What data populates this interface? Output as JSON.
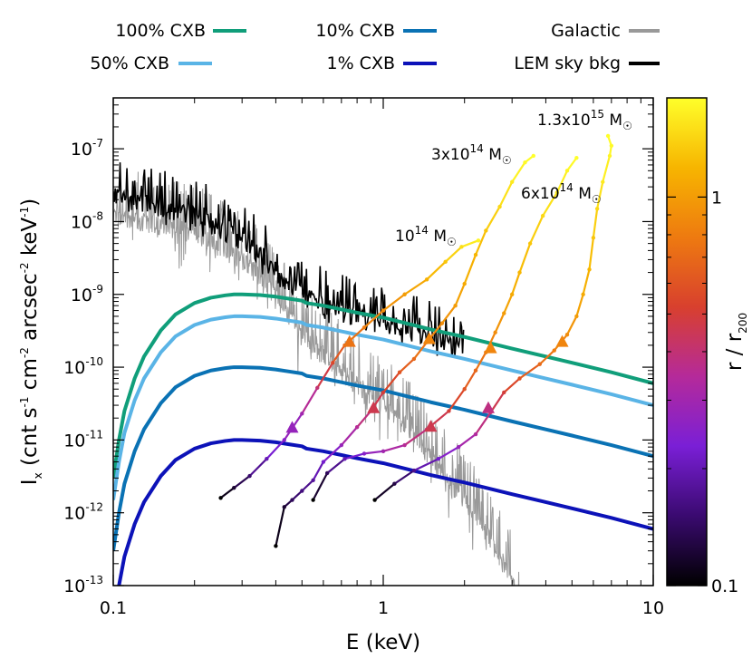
{
  "chart_data": {
    "type": "line",
    "xlabel": "E (keV)",
    "ylabel": {
      "parts": [
        {
          "t": "I"
        },
        {
          "t": "x",
          "sub": true
        },
        {
          "t": " (cnt s"
        },
        {
          "t": "-1",
          "sup": true
        },
        {
          "t": " cm"
        },
        {
          "t": "-2",
          "sup": true
        },
        {
          "t": " arcsec"
        },
        {
          "t": "-2",
          "sup": true
        },
        {
          "t": " keV"
        },
        {
          "t": "-1",
          "sup": true
        },
        {
          "t": ")"
        }
      ]
    },
    "colorbar_label": {
      "parts": [
        {
          "t": "r / r"
        },
        {
          "t": "200",
          "sub": true
        }
      ]
    },
    "x_scale": "log",
    "y_scale": "log",
    "xlim": [
      0.1,
      10
    ],
    "ylim": [
      1e-13,
      5e-07
    ],
    "x_ticks": [
      {
        "value": 0.1,
        "label": "0.1"
      },
      {
        "value": 1,
        "label": "1"
      },
      {
        "value": 10,
        "label": "10"
      }
    ],
    "y_ticks": [
      {
        "value": 1e-13,
        "base": "10",
        "exp": "-13"
      },
      {
        "value": 1e-12,
        "base": "10",
        "exp": "-12"
      },
      {
        "value": 1e-11,
        "base": "10",
        "exp": "-11"
      },
      {
        "value": 1e-10,
        "base": "10",
        "exp": "-10"
      },
      {
        "value": 1e-09,
        "base": "10",
        "exp": "-9"
      },
      {
        "value": 1e-08,
        "base": "10",
        "exp": "-8"
      },
      {
        "value": 1e-07,
        "base": "10",
        "exp": "-7"
      }
    ],
    "colorbar": {
      "scale": "log",
      "range": [
        0.1,
        1.8
      ],
      "ticks": [
        {
          "value": 1,
          "label": "1"
        },
        {
          "value": 0.1,
          "label": "0.1"
        }
      ],
      "colors": [
        "#000000",
        "#3a0a70",
        "#7a1fd6",
        "#b52a9a",
        "#d8402e",
        "#ee7a10",
        "#f7b500",
        "#ffff2a"
      ]
    },
    "legend": [
      {
        "name": "100% CXB",
        "color": "#109e7a"
      },
      {
        "name": "50% CXB",
        "color": "#5ab4e6"
      },
      {
        "name": "10% CXB",
        "color": "#0a72b4"
      },
      {
        "name": "1% CXB",
        "color": "#0c12b8"
      },
      {
        "name": "Galactic",
        "color": "#999999"
      },
      {
        "name": "LEM sky bkg",
        "color": "#000000"
      }
    ],
    "cxb_series": [
      {
        "name": "100% CXB",
        "color": "#109e7a",
        "scale": 1
      },
      {
        "name": "50% CXB",
        "color": "#5ab4e6",
        "scale": 0.5
      },
      {
        "name": "10% CXB",
        "color": "#0a72b4",
        "scale": 0.1
      },
      {
        "name": "1% CXB",
        "color": "#0c12b8",
        "scale": 0.01
      }
    ],
    "cxb_shape": [
      [
        0.1,
        3e-12
      ],
      [
        0.105,
        1e-11
      ],
      [
        0.11,
        2.5e-11
      ],
      [
        0.12,
        7e-11
      ],
      [
        0.13,
        1.4e-10
      ],
      [
        0.15,
        3.2e-10
      ],
      [
        0.17,
        5.3e-10
      ],
      [
        0.2,
        7.6e-10
      ],
      [
        0.23,
        9e-10
      ],
      [
        0.26,
        9.7e-10
      ],
      [
        0.28,
        1e-09
      ],
      [
        0.3,
        1e-09
      ],
      [
        0.35,
        9.8e-10
      ],
      [
        0.4,
        9.3e-10
      ],
      [
        0.45,
        8.7e-10
      ],
      [
        0.5,
        8.2e-10
      ],
      [
        0.52,
        7.6e-10
      ],
      [
        0.6,
        7e-10
      ],
      [
        0.8,
        5.6e-10
      ],
      [
        1.0,
        4.8e-10
      ],
      [
        1.5,
        3.3e-10
      ],
      [
        2,
        2.6e-10
      ],
      [
        3,
        1.8e-10
      ],
      [
        4,
        1.4e-10
      ],
      [
        5,
        1.15e-10
      ],
      [
        7,
        8.5e-11
      ],
      [
        10,
        6e-11
      ]
    ],
    "galactic": {
      "name": "Galactic",
      "color": "#999999",
      "envelope": [
        [
          0.1,
          2e-08
        ],
        [
          0.12,
          1.8e-08
        ],
        [
          0.15,
          1.5e-08
        ],
        [
          0.2,
          1.2e-08
        ],
        [
          0.25,
          7.5e-09
        ],
        [
          0.3,
          5e-09
        ],
        [
          0.35,
          3e-09
        ],
        [
          0.4,
          1.6e-09
        ],
        [
          0.45,
          8e-10
        ],
        [
          0.5,
          4.5e-10
        ],
        [
          0.6,
          2.5e-10
        ],
        [
          0.7,
          1.5e-10
        ],
        [
          0.8,
          1e-10
        ],
        [
          0.9,
          7e-11
        ],
        [
          1.0,
          5e-11
        ],
        [
          1.3,
          2e-11
        ],
        [
          1.6,
          7e-12
        ],
        [
          2.0,
          2.5e-12
        ],
        [
          2.5,
          7e-13
        ],
        [
          3.0,
          2e-13
        ],
        [
          3.2,
          1e-13
        ]
      ]
    },
    "lem_sky": {
      "name": "LEM sky bkg",
      "color": "#000000",
      "envelope": [
        [
          0.1,
          2.2e-08
        ],
        [
          0.12,
          1.9e-08
        ],
        [
          0.15,
          1.6e-08
        ],
        [
          0.2,
          1.3e-08
        ],
        [
          0.25,
          8e-09
        ],
        [
          0.3,
          5.5e-09
        ],
        [
          0.35,
          3.5e-09
        ],
        [
          0.4,
          2e-09
        ],
        [
          0.45,
          1.3e-09
        ],
        [
          0.5,
          1e-09
        ],
        [
          0.6,
          7.5e-10
        ],
        [
          0.7,
          6e-10
        ],
        [
          0.8,
          5e-10
        ],
        [
          0.9,
          4.3e-10
        ],
        [
          1.0,
          3.8e-10
        ],
        [
          1.2,
          3.3e-10
        ],
        [
          1.5,
          2.6e-10
        ],
        [
          1.8,
          2e-10
        ],
        [
          2.0,
          1.7e-10
        ]
      ]
    },
    "cluster_tracks": [
      {
        "label": {
          "base": "10",
          "exp": "14",
          "unit": " M",
          "sun": "☉"
        },
        "points": [
          [
            0.25,
            1.6e-12,
            0.1
          ],
          [
            0.28,
            2.2e-12,
            0.12
          ],
          [
            0.32,
            3.2e-12,
            0.15
          ],
          [
            0.37,
            5.5e-12,
            0.2
          ],
          [
            0.43,
            1e-11,
            0.25
          ],
          [
            0.5,
            2.3e-11,
            0.3
          ],
          [
            0.57,
            5.2e-11,
            0.4
          ],
          [
            0.65,
            1.15e-10,
            0.55
          ],
          [
            0.72,
            2e-10,
            0.7
          ],
          [
            0.85,
            3.5e-10,
            0.8
          ],
          [
            1.0,
            6e-10,
            0.9
          ],
          [
            1.2,
            1e-09,
            1.0
          ],
          [
            1.45,
            1.6e-09,
            1.15
          ],
          [
            1.7,
            2.8e-09,
            1.3
          ],
          [
            1.95,
            4.5e-09,
            1.5
          ],
          [
            2.25,
            5.5e-09,
            1.7
          ]
        ],
        "arrows": [
          [
            0.46,
            1.45e-11
          ],
          [
            0.75,
            2.2e-10
          ]
        ]
      },
      {
        "label": {
          "base": "3x10",
          "exp": "14",
          "unit": " M",
          "sun": "☉"
        },
        "points": [
          [
            0.4,
            3.5e-13,
            0.1
          ],
          [
            0.43,
            1.2e-12,
            0.12
          ],
          [
            0.46,
            1.5e-12,
            0.14
          ],
          [
            0.5,
            2e-12,
            0.16
          ],
          [
            0.55,
            2.8e-12,
            0.18
          ],
          [
            0.6,
            5e-12,
            0.22
          ],
          [
            0.7,
            8.5e-12,
            0.28
          ],
          [
            0.8,
            1.5e-11,
            0.35
          ],
          [
            0.9,
            2.5e-11,
            0.42
          ],
          [
            1.0,
            4.5e-11,
            0.5
          ],
          [
            1.15,
            8.5e-11,
            0.6
          ],
          [
            1.3,
            1.3e-10,
            0.7
          ],
          [
            1.45,
            2.2e-10,
            0.8
          ],
          [
            1.65,
            4e-10,
            0.9
          ],
          [
            1.85,
            7e-10,
            1.0
          ],
          [
            2.0,
            1.4e-09,
            1.1
          ],
          [
            2.2,
            3.5e-09,
            1.2
          ],
          [
            2.4,
            7.5e-09,
            1.3
          ],
          [
            2.7,
            1.6e-08,
            1.45
          ],
          [
            3.0,
            3.5e-08,
            1.6
          ],
          [
            3.35,
            6.5e-08,
            1.75
          ],
          [
            3.6,
            8e-08,
            1.8
          ]
        ],
        "arrows": [
          [
            0.92,
            2.7e-11
          ],
          [
            1.48,
            2.4e-10
          ]
        ]
      },
      {
        "label": {
          "base": "6x10",
          "exp": "14",
          "unit": " M",
          "sun": "☉"
        },
        "points": [
          [
            0.55,
            1.5e-12,
            0.1
          ],
          [
            0.62,
            3.5e-12,
            0.14
          ],
          [
            0.72,
            5.5e-12,
            0.2
          ],
          [
            0.85,
            6.5e-12,
            0.25
          ],
          [
            1.0,
            7e-12,
            0.3
          ],
          [
            1.2,
            8.5e-12,
            0.35
          ],
          [
            1.45,
            1.4e-11,
            0.42
          ],
          [
            1.75,
            2.5e-11,
            0.5
          ],
          [
            2.0,
            5e-11,
            0.6
          ],
          [
            2.2,
            9e-11,
            0.7
          ],
          [
            2.4,
            1.6e-10,
            0.8
          ],
          [
            2.6,
            3e-10,
            0.9
          ],
          [
            2.8,
            5.5e-10,
            1.0
          ],
          [
            3.0,
            1e-09,
            1.1
          ],
          [
            3.2,
            2e-09,
            1.2
          ],
          [
            3.5,
            5e-09,
            1.3
          ],
          [
            3.9,
            1.2e-08,
            1.45
          ],
          [
            4.4,
            2.5e-08,
            1.6
          ],
          [
            4.8,
            5e-08,
            1.7
          ],
          [
            5.2,
            7.5e-08,
            1.8
          ]
        ],
        "arrows": [
          [
            1.5,
            1.5e-11
          ],
          [
            2.5,
            1.8e-10
          ]
        ]
      },
      {
        "label": {
          "base": "1.3x10",
          "exp": "15",
          "unit": " M",
          "sun": "☉"
        },
        "points": [
          [
            0.93,
            1.5e-12,
            0.1
          ],
          [
            1.1,
            2.5e-12,
            0.13
          ],
          [
            1.3,
            3.8e-12,
            0.17
          ],
          [
            1.6,
            5.5e-12,
            0.22
          ],
          [
            1.9,
            8e-12,
            0.28
          ],
          [
            2.2,
            1.2e-11,
            0.34
          ],
          [
            2.5,
            2.4e-11,
            0.42
          ],
          [
            2.8,
            4.5e-11,
            0.5
          ],
          [
            3.2,
            7e-11,
            0.6
          ],
          [
            3.8,
            1.1e-10,
            0.7
          ],
          [
            4.3,
            1.7e-10,
            0.8
          ],
          [
            4.8,
            2.8e-10,
            0.9
          ],
          [
            5.2,
            5e-10,
            1.0
          ],
          [
            5.5,
            1e-09,
            1.1
          ],
          [
            5.8,
            2.2e-09,
            1.2
          ],
          [
            6.0,
            6e-09,
            1.3
          ],
          [
            6.2,
            1.5e-08,
            1.45
          ],
          [
            6.5,
            3.5e-08,
            1.6
          ],
          [
            6.9,
            8e-08,
            1.7
          ],
          [
            7.0,
            1.1e-07,
            1.75
          ],
          [
            6.8,
            1.5e-07,
            1.8
          ]
        ],
        "arrows": [
          [
            2.45,
            2.7e-11
          ],
          [
            4.6,
            2.2e-10
          ]
        ]
      }
    ]
  }
}
